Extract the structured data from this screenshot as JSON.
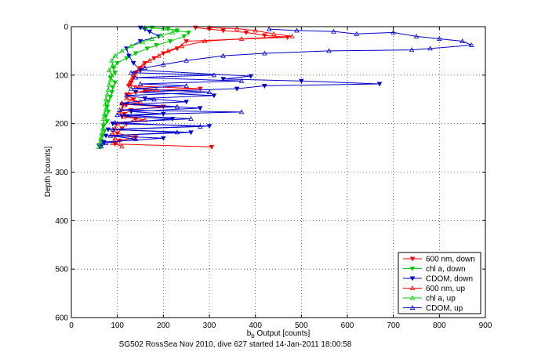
{
  "chart_data": {
    "type": "line",
    "title": "",
    "caption": "SG502 RossSea Nov 2010, dive 627 started 14-Jan-2011 18:00:58",
    "xlabel_main": "b",
    "xlabel_sub": "b",
    "xlabel_rest": " Output [counts]",
    "ylabel": "Depth [counts]",
    "xlim": [
      0,
      900
    ],
    "ylim": [
      0,
      600
    ],
    "y_reversed": true,
    "xticks": [
      0,
      100,
      200,
      300,
      400,
      500,
      600,
      700,
      800,
      900
    ],
    "yticks": [
      0,
      100,
      200,
      300,
      400,
      500,
      600
    ],
    "grid": "dotted",
    "legend_position": "bottom-right",
    "series": [
      {
        "name": "600 nm, down",
        "color": "#ff0000",
        "marker": "triangle-down",
        "points": [
          [
            270,
            2
          ],
          [
            300,
            5
          ],
          [
            330,
            8
          ],
          [
            380,
            12
          ],
          [
            420,
            18
          ],
          [
            470,
            22
          ],
          [
            250,
            30
          ],
          [
            230,
            45
          ],
          [
            200,
            55
          ],
          [
            180,
            65
          ],
          [
            160,
            75
          ],
          [
            150,
            85
          ],
          [
            140,
            95
          ],
          [
            135,
            105
          ],
          [
            130,
            115
          ],
          [
            125,
            122
          ],
          [
            280,
            128
          ],
          [
            160,
            132
          ],
          [
            120,
            140
          ],
          [
            135,
            150
          ],
          [
            110,
            160
          ],
          [
            200,
            165
          ],
          [
            130,
            172
          ],
          [
            115,
            180
          ],
          [
            140,
            190
          ],
          [
            120,
            200
          ],
          [
            110,
            210
          ],
          [
            100,
            220
          ],
          [
            140,
            228
          ],
          [
            105,
            235
          ],
          [
            95,
            242
          ],
          [
            305,
            248
          ]
        ]
      },
      {
        "name": "chl a, down",
        "color": "#00cc00",
        "marker": "triangle-down",
        "points": [
          [
            175,
            2
          ],
          [
            210,
            5
          ],
          [
            230,
            8
          ],
          [
            255,
            12
          ],
          [
            245,
            20
          ],
          [
            215,
            30
          ],
          [
            185,
            38
          ],
          [
            165,
            45
          ],
          [
            140,
            55
          ],
          [
            120,
            65
          ],
          [
            100,
            75
          ],
          [
            92,
            85
          ],
          [
            95,
            95
          ],
          [
            85,
            105
          ],
          [
            95,
            115
          ],
          [
            90,
            125
          ],
          [
            88,
            135
          ],
          [
            85,
            145
          ],
          [
            80,
            155
          ],
          [
            78,
            165
          ],
          [
            80,
            175
          ],
          [
            75,
            185
          ],
          [
            78,
            195
          ],
          [
            70,
            205
          ],
          [
            72,
            215
          ],
          [
            68,
            225
          ],
          [
            65,
            235
          ],
          [
            65,
            245
          ]
        ]
      },
      {
        "name": "CDOM, down",
        "color": "#0000cc",
        "marker": "triangle-down",
        "points": [
          [
            150,
            2
          ],
          [
            160,
            5
          ],
          [
            170,
            10
          ],
          [
            190,
            20
          ],
          [
            150,
            30
          ],
          [
            120,
            45
          ],
          [
            125,
            60
          ],
          [
            135,
            75
          ],
          [
            150,
            90
          ],
          [
            390,
            102
          ],
          [
            330,
            108
          ],
          [
            500,
            112
          ],
          [
            670,
            118
          ],
          [
            420,
            122
          ],
          [
            360,
            128
          ],
          [
            140,
            135
          ],
          [
            310,
            142
          ],
          [
            160,
            148
          ],
          [
            250,
            155
          ],
          [
            120,
            160
          ],
          [
            280,
            168
          ],
          [
            130,
            175
          ],
          [
            200,
            180
          ],
          [
            110,
            185
          ],
          [
            220,
            190
          ],
          [
            90,
            200
          ],
          [
            300,
            205
          ],
          [
            80,
            212
          ],
          [
            260,
            218
          ],
          [
            75,
            225
          ],
          [
            200,
            230
          ],
          [
            70,
            238
          ],
          [
            60,
            245
          ]
        ]
      },
      {
        "name": "600 nm, up",
        "color": "#ff0000",
        "marker": "triangle-up",
        "points": [
          [
            300,
            2
          ],
          [
            360,
            4
          ],
          [
            400,
            8
          ],
          [
            440,
            15
          ],
          [
            480,
            20
          ],
          [
            370,
            25
          ],
          [
            290,
            30
          ],
          [
            240,
            40
          ],
          [
            210,
            50
          ],
          [
            190,
            60
          ],
          [
            170,
            70
          ],
          [
            155,
            80
          ],
          [
            145,
            90
          ],
          [
            135,
            100
          ],
          [
            130,
            110
          ],
          [
            125,
            118
          ],
          [
            140,
            125
          ],
          [
            185,
            130
          ],
          [
            125,
            138
          ],
          [
            120,
            148
          ],
          [
            150,
            155
          ],
          [
            115,
            162
          ],
          [
            110,
            170
          ],
          [
            105,
            178
          ],
          [
            115,
            186
          ],
          [
            160,
            192
          ],
          [
            100,
            200
          ],
          [
            95,
            210
          ],
          [
            90,
            220
          ],
          [
            95,
            230
          ],
          [
            90,
            240
          ],
          [
            110,
            247
          ]
        ]
      },
      {
        "name": "chl a, up",
        "color": "#00cc00",
        "marker": "triangle-up",
        "points": [
          [
            160,
            2
          ],
          [
            200,
            4
          ],
          [
            230,
            7
          ],
          [
            220,
            12
          ],
          [
            195,
            18
          ],
          [
            175,
            25
          ],
          [
            155,
            32
          ],
          [
            130,
            40
          ],
          [
            110,
            50
          ],
          [
            95,
            60
          ],
          [
            88,
            70
          ],
          [
            90,
            80
          ],
          [
            82,
            90
          ],
          [
            88,
            100
          ],
          [
            85,
            110
          ],
          [
            82,
            120
          ],
          [
            80,
            130
          ],
          [
            78,
            140
          ],
          [
            75,
            150
          ],
          [
            74,
            160
          ],
          [
            75,
            170
          ],
          [
            72,
            180
          ],
          [
            70,
            190
          ],
          [
            70,
            200
          ],
          [
            68,
            210
          ],
          [
            66,
            220
          ],
          [
            64,
            230
          ],
          [
            62,
            240
          ],
          [
            60,
            248
          ]
        ]
      },
      {
        "name": "CDOM, up",
        "color": "#0000cc",
        "marker": "triangle-up",
        "points": [
          [
            430,
            5
          ],
          [
            490,
            8
          ],
          [
            570,
            10
          ],
          [
            620,
            15
          ],
          [
            700,
            12
          ],
          [
            750,
            20
          ],
          [
            800,
            25
          ],
          [
            850,
            30
          ],
          [
            870,
            38
          ],
          [
            780,
            45
          ],
          [
            740,
            48
          ],
          [
            560,
            50
          ],
          [
            420,
            55
          ],
          [
            330,
            60
          ],
          [
            250,
            70
          ],
          [
            200,
            78
          ],
          [
            160,
            85
          ],
          [
            130,
            95
          ],
          [
            310,
            100
          ],
          [
            140,
            105
          ],
          [
            370,
            112
          ],
          [
            150,
            118
          ],
          [
            250,
            122
          ],
          [
            130,
            128
          ],
          [
            300,
            135
          ],
          [
            120,
            142
          ],
          [
            180,
            150
          ],
          [
            110,
            158
          ],
          [
            230,
            165
          ],
          [
            105,
            172
          ],
          [
            370,
            176
          ],
          [
            100,
            182
          ],
          [
            260,
            190
          ],
          [
            95,
            198
          ],
          [
            280,
            206
          ],
          [
            90,
            212
          ],
          [
            230,
            218
          ],
          [
            85,
            225
          ],
          [
            140,
            232
          ],
          [
            75,
            240
          ],
          [
            65,
            247
          ]
        ]
      }
    ]
  }
}
